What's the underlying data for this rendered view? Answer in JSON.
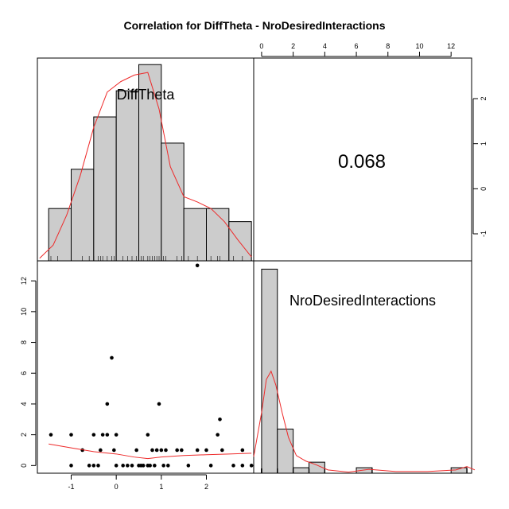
{
  "chart_data": {
    "type": "scatter-matrix",
    "title": "Correlation  for DiffTheta - NroDesiredInteractions",
    "variables": [
      "DiffTheta",
      "NroDesiredInteractions"
    ],
    "correlation": "0.068",
    "axes": {
      "bottom_ticks": [
        "-1",
        "0",
        "1",
        "2"
      ],
      "top_ticks": [
        "0",
        "2",
        "4",
        "6",
        "8",
        "10",
        "12"
      ],
      "right_ticks": [
        "-1",
        "0",
        "1",
        "2"
      ],
      "left_ticks": [
        "0",
        "2",
        "4",
        "6",
        "8",
        "10",
        "12"
      ],
      "diff_range": [
        -1.75,
        3.05
      ],
      "nro_range": [
        -0.5,
        13.3
      ],
      "diff_hist_value_axis": [
        -1.6,
        2.9
      ]
    },
    "diff_histogram": {
      "breaks": [
        -1.5,
        -1,
        -0.5,
        0,
        0.5,
        1,
        1.5,
        2,
        2.5,
        3
      ],
      "counts": [
        4,
        7,
        11,
        13,
        15,
        9,
        4,
        4,
        3
      ]
    },
    "diff_density_curve": [
      [
        -1.7,
        0.2
      ],
      [
        -1.4,
        1.2
      ],
      [
        -1.1,
        3.5
      ],
      [
        -0.8,
        6.5
      ],
      [
        -0.5,
        10.2
      ],
      [
        -0.2,
        12.9
      ],
      [
        0.1,
        13.7
      ],
      [
        0.4,
        14.2
      ],
      [
        0.7,
        14.4
      ],
      [
        0.95,
        11.6
      ],
      [
        1.2,
        7.2
      ],
      [
        1.5,
        4.9
      ],
      [
        1.8,
        4.5
      ],
      [
        2.1,
        4.0
      ],
      [
        2.4,
        3.0
      ],
      [
        2.7,
        1.6
      ],
      [
        3.0,
        0.3
      ]
    ],
    "nro_histogram": {
      "breaks": [
        0,
        1,
        2,
        3,
        4,
        5,
        6,
        7,
        8,
        9,
        10,
        11,
        12,
        13
      ],
      "counts": [
        37,
        8,
        1,
        2,
        0,
        0,
        1,
        0,
        0,
        0,
        0,
        0,
        1
      ]
    },
    "nro_density_curve": [
      [
        -0.5,
        3
      ],
      [
        0,
        11
      ],
      [
        0.3,
        17
      ],
      [
        0.6,
        18.5
      ],
      [
        0.9,
        16
      ],
      [
        1.3,
        11
      ],
      [
        1.7,
        6.5
      ],
      [
        2.2,
        3.2
      ],
      [
        2.8,
        2.2
      ],
      [
        3.4,
        1.6
      ],
      [
        4.2,
        0.6
      ],
      [
        5.5,
        0.2
      ],
      [
        6.8,
        0.7
      ],
      [
        8.5,
        0.3
      ],
      [
        10.5,
        0.3
      ],
      [
        12.3,
        0.6
      ],
      [
        13.0,
        1.2
      ],
      [
        13.5,
        0.6
      ]
    ],
    "scatter_points": [
      [
        -1.45,
        2
      ],
      [
        -1.0,
        2
      ],
      [
        -1.0,
        0
      ],
      [
        -0.75,
        1
      ],
      [
        -0.6,
        0
      ],
      [
        -0.5,
        2
      ],
      [
        -0.5,
        0
      ],
      [
        -0.4,
        0
      ],
      [
        -0.35,
        1
      ],
      [
        -0.3,
        2
      ],
      [
        -0.2,
        4
      ],
      [
        -0.2,
        2
      ],
      [
        -0.1,
        7
      ],
      [
        -0.05,
        1
      ],
      [
        0.0,
        2
      ],
      [
        0.0,
        0
      ],
      [
        0.15,
        0
      ],
      [
        0.25,
        0
      ],
      [
        0.35,
        0
      ],
      [
        0.45,
        1
      ],
      [
        0.5,
        0
      ],
      [
        0.55,
        0
      ],
      [
        0.6,
        0
      ],
      [
        0.7,
        0
      ],
      [
        0.7,
        2
      ],
      [
        0.75,
        0
      ],
      [
        0.8,
        1
      ],
      [
        0.85,
        0
      ],
      [
        0.9,
        1
      ],
      [
        0.95,
        4
      ],
      [
        1.0,
        1
      ],
      [
        1.05,
        0
      ],
      [
        1.1,
        1
      ],
      [
        1.15,
        0
      ],
      [
        1.35,
        1
      ],
      [
        1.45,
        1
      ],
      [
        1.6,
        0
      ],
      [
        1.8,
        1
      ],
      [
        1.8,
        13
      ],
      [
        2.0,
        1
      ],
      [
        2.1,
        0
      ],
      [
        2.25,
        2
      ],
      [
        2.3,
        3
      ],
      [
        2.35,
        1
      ],
      [
        2.6,
        0
      ],
      [
        2.8,
        1
      ],
      [
        2.8,
        0
      ],
      [
        3.0,
        0
      ]
    ],
    "lowess_curve": [
      [
        -1.5,
        1.4
      ],
      [
        -1.0,
        1.15
      ],
      [
        -0.5,
        0.9
      ],
      [
        0.0,
        0.75
      ],
      [
        0.4,
        0.55
      ],
      [
        0.7,
        0.45
      ],
      [
        1.0,
        0.55
      ],
      [
        1.5,
        0.65
      ],
      [
        2.0,
        0.7
      ],
      [
        2.5,
        0.75
      ],
      [
        3.0,
        0.8
      ]
    ],
    "nro_rug": [
      0,
      0,
      0,
      1,
      1,
      2,
      3,
      4,
      7,
      13
    ],
    "diff_rug": [
      -1.45,
      -1.3,
      -1.0,
      -0.75,
      -0.6,
      -0.5,
      -0.4,
      -0.35,
      -0.3,
      -0.2,
      -0.1,
      -0.05,
      0.0,
      0.15,
      0.25,
      0.35,
      0.45,
      0.5,
      0.55,
      0.6,
      0.7,
      0.75,
      0.8,
      0.85,
      0.9,
      0.95,
      1.0,
      1.05,
      1.1,
      1.35,
      1.45,
      1.6,
      1.8,
      2.0,
      2.1,
      2.25,
      2.3,
      2.6,
      2.8,
      3.0
    ],
    "colors": {
      "bar_fill": "#cccccc",
      "curve": "#ee2a2a",
      "points": "#000000"
    }
  }
}
